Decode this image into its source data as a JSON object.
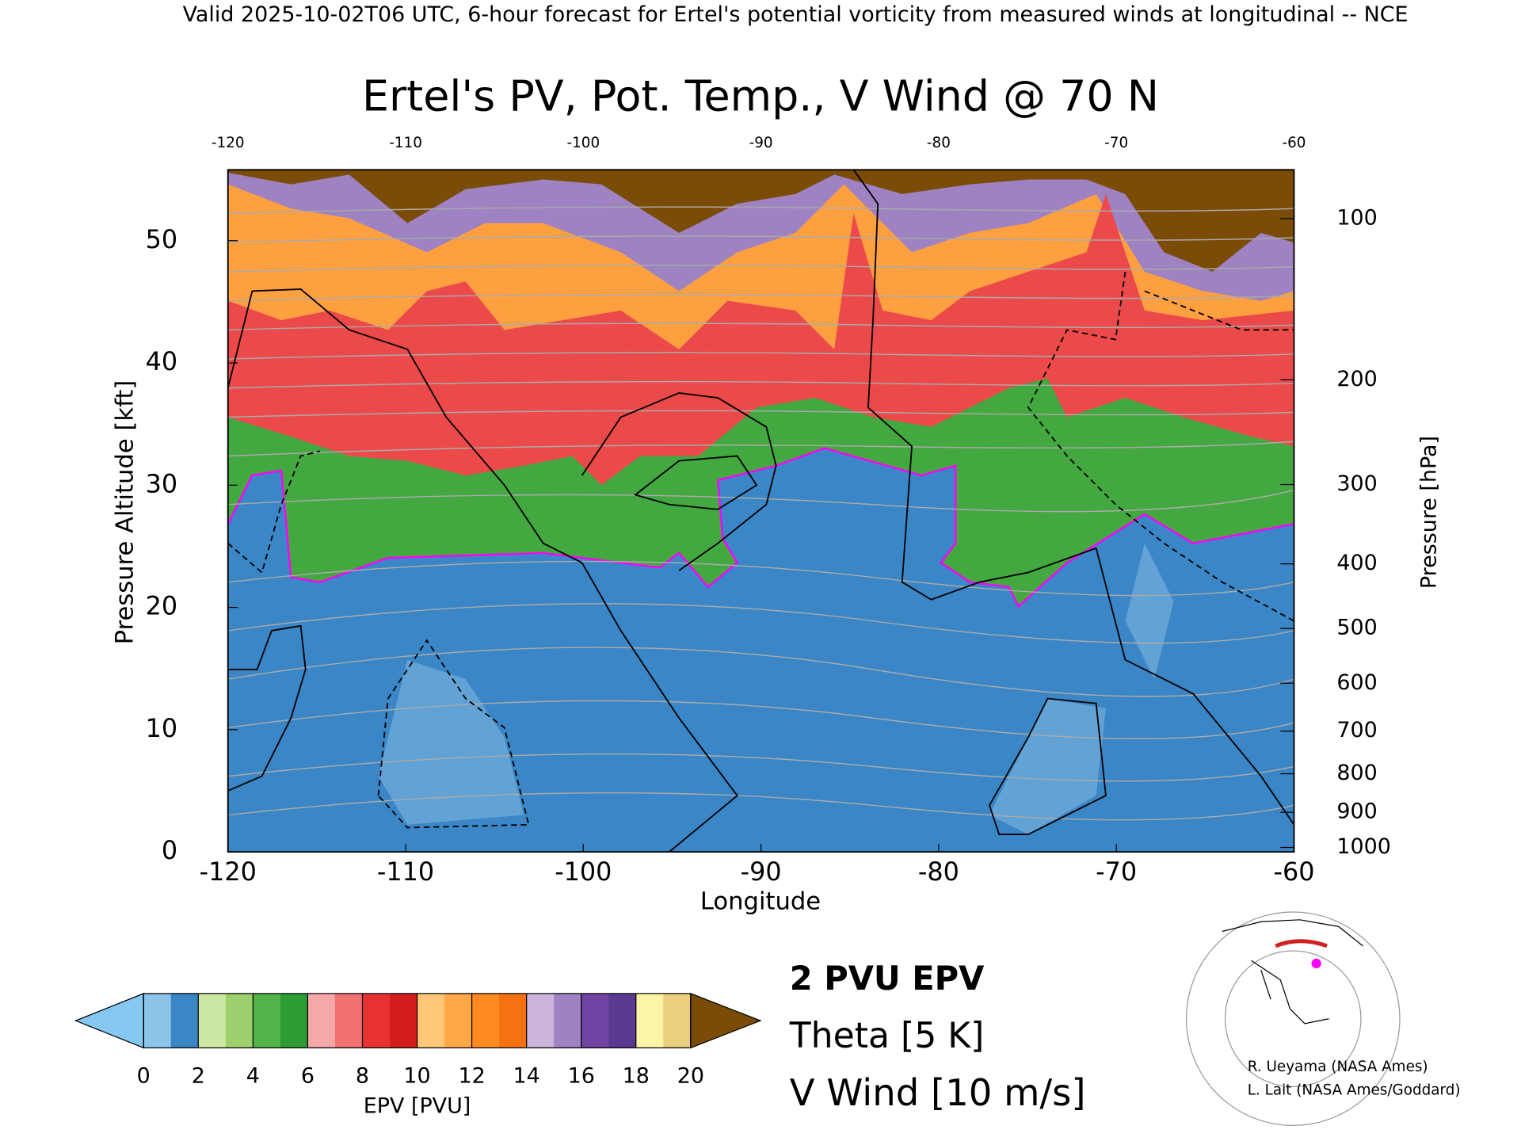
{
  "header": "Valid 2025-10-02T06 UTC, 6-hour forecast for Ertel's potential vorticity from measured winds at longitudinal -- NCE",
  "chart_data": {
    "type": "contour",
    "title": "Ertel's PV, Pot. Temp., V Wind @ 70 N",
    "x_label": "Longitude",
    "y_label": "Pressure Altitude [kft]",
    "y2_label": "Pressure [hPa]",
    "xlim": [
      -120,
      -60
    ],
    "xticks": [
      -120,
      -110,
      -100,
      -90,
      -80,
      -70,
      -60
    ],
    "ylim": [
      0,
      55.8
    ],
    "yticks": [
      0,
      10,
      20,
      30,
      40,
      50
    ],
    "y2ticks": [
      100,
      200,
      300,
      400,
      500,
      600,
      700,
      800,
      900,
      1000
    ],
    "colorbar": {
      "label": "EPV [PVU]",
      "lim": [
        0,
        20
      ],
      "ticks": [
        0,
        2,
        4,
        6,
        8,
        10,
        12,
        14,
        16,
        18,
        20
      ],
      "colors": [
        "#8cc4ea",
        "#3a86c6",
        "#cce8a4",
        "#9ed06e",
        "#52b448",
        "#2e9c34",
        "#f4a8a8",
        "#f27272",
        "#e83232",
        "#d41e1e",
        "#ffc878",
        "#ffa848",
        "#ff8a22",
        "#f47212",
        "#cab4da",
        "#9e82c2",
        "#7044a2",
        "#5a3a90",
        "#fcf4a6",
        "#ead07c"
      ],
      "under_color": "#86c8f2",
      "over_color": "#7a4c08"
    },
    "legend": [
      {
        "name": "2 PVU EPV",
        "color": "#ff00ff"
      },
      {
        "name": "Theta [5 K]",
        "color": "#b4b4b4"
      },
      {
        "name": "V Wind [10 m/s]",
        "color": "#000000"
      }
    ],
    "credits": [
      "R. Ueyama (NASA Ames)",
      "L. Lait (NASA Ames/Goddard)"
    ]
  }
}
